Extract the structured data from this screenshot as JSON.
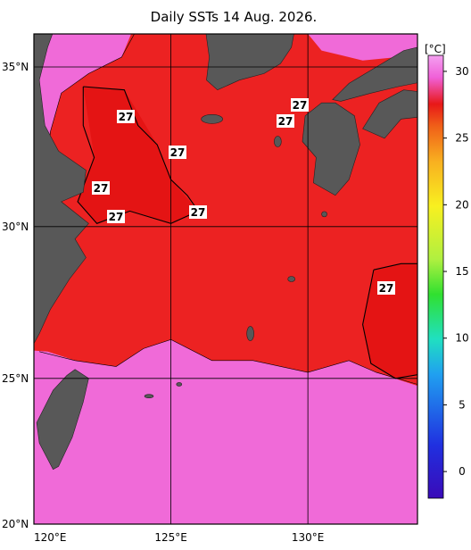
{
  "title": "Daily SSTs 14 Aug. 2026.",
  "map": {
    "projection": "mercator",
    "xlim": [
      120,
      134
    ],
    "ylim": [
      20,
      36
    ],
    "xticks": [
      {
        "value": 120,
        "label": "120°E"
      },
      {
        "value": 125,
        "label": "125°E"
      },
      {
        "value": 130,
        "label": "130°E"
      }
    ],
    "yticks": [
      {
        "value": 20,
        "label": "20°N"
      },
      {
        "value": 25,
        "label": "25°N"
      },
      {
        "value": 30,
        "label": "30°N"
      },
      {
        "value": 35,
        "label": "35°N"
      }
    ],
    "grid": true
  },
  "colorbar": {
    "unit": "[°C]",
    "clim": [
      -2,
      31.2
    ],
    "ticks": [
      0,
      5,
      10,
      15,
      20,
      25,
      30
    ]
  },
  "contour_labels": [
    "27",
    "27",
    "27",
    "27",
    "27",
    "27",
    "27",
    "27"
  ]
}
